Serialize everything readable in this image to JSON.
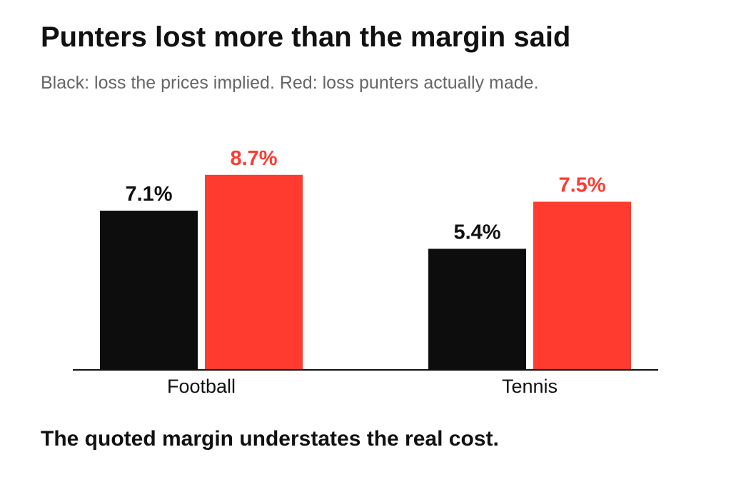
{
  "title": "Punters lost more than the margin said",
  "subtitle": "Black: loss the prices implied. Red: loss punters actually made.",
  "footnote": "The quoted margin understates the real cost.",
  "colors": {
    "implied": "#0d0d0d",
    "actual": "#ff3b30",
    "axis": "#111111",
    "text": "#111111"
  },
  "chart_data": {
    "type": "bar",
    "categories": [
      "Football",
      "Tennis"
    ],
    "series": [
      {
        "values": [
          7.1,
          5.4
        ],
        "labels": [
          "7.1%",
          "5.4%"
        ],
        "color": "#0d0d0d"
      },
      {
        "values": [
          8.7,
          7.5
        ],
        "labels": [
          "8.7%",
          "7.5%"
        ],
        "color": "#ff3b30"
      }
    ],
    "ylim": [
      0,
      10
    ],
    "grid": false,
    "legend": "none"
  }
}
